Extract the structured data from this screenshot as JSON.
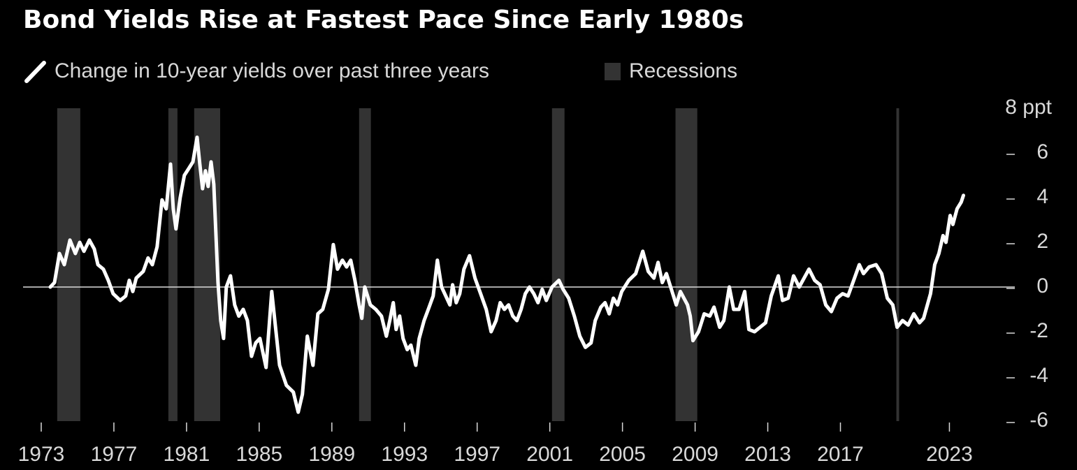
{
  "chart_data": {
    "type": "line",
    "title": "Bond Yields Rise at Fastest Pace Since Early 1980s",
    "series": [
      {
        "name": "Change in 10-year yields over past three years",
        "color": "#ffffff",
        "x": [
          1973.5,
          1973.73,
          1974.0,
          1974.27,
          1974.58,
          1974.88,
          1975.12,
          1975.35,
          1975.65,
          1975.92,
          1976.12,
          1976.42,
          1976.69,
          1976.96,
          1977.35,
          1977.65,
          1977.85,
          1978.04,
          1978.23,
          1978.62,
          1978.88,
          1979.12,
          1979.38,
          1979.65,
          1979.88,
          1980.12,
          1980.27,
          1980.42,
          1980.65,
          1980.88,
          1981.12,
          1981.35,
          1981.58,
          1981.73,
          1981.88,
          1982.04,
          1982.19,
          1982.35,
          1982.5,
          1982.73,
          1982.88,
          1983.04,
          1983.19,
          1983.42,
          1983.65,
          1983.88,
          1984.12,
          1984.35,
          1984.58,
          1984.81,
          1985.04,
          1985.38,
          1985.69,
          1986.12,
          1986.5,
          1986.88,
          1987.15,
          1987.38,
          1987.65,
          1987.96,
          1988.23,
          1988.5,
          1988.81,
          1989.08,
          1989.31,
          1989.58,
          1989.81,
          1990.04,
          1990.27,
          1990.5,
          1990.65,
          1990.81,
          1991.12,
          1991.42,
          1991.73,
          1992.0,
          1992.19,
          1992.38,
          1992.54,
          1992.73,
          1992.92,
          1993.15,
          1993.35,
          1993.62,
          1993.81,
          1994.08,
          1994.31,
          1994.58,
          1994.81,
          1995.04,
          1995.27,
          1995.5,
          1995.65,
          1995.85,
          1996.04,
          1996.27,
          1996.58,
          1996.88,
          1997.19,
          1997.5,
          1997.77,
          1998.04,
          1998.27,
          1998.5,
          1998.73,
          1998.96,
          1999.19,
          1999.42,
          1999.65,
          1999.88,
          2000.12,
          2000.35,
          2000.58,
          2000.81,
          2001.12,
          2001.5,
          2001.73,
          2002.04,
          2002.35,
          2002.65,
          2002.96,
          2003.27,
          2003.5,
          2003.81,
          2004.04,
          2004.27,
          2004.5,
          2004.73,
          2004.96,
          2005.35,
          2005.73,
          2006.12,
          2006.42,
          2006.73,
          2006.96,
          2007.19,
          2007.42,
          2007.73,
          2007.96,
          2008.19,
          2008.58,
          2008.73,
          2008.88,
          2009.19,
          2009.5,
          2009.81,
          2010.04,
          2010.35,
          2010.58,
          2010.88,
          2011.12,
          2011.42,
          2011.73,
          2011.96,
          2012.27,
          2012.58,
          2012.88,
          2013.19,
          2013.58,
          2013.81,
          2014.12,
          2014.42,
          2014.73,
          2015.27,
          2015.58,
          2015.88,
          2016.19,
          2016.5,
          2016.81,
          2017.12,
          2017.42,
          2017.73,
          2018.04,
          2018.27,
          2018.58,
          2018.96,
          2019.27,
          2019.58,
          2019.88,
          2020.12,
          2020.42,
          2020.73,
          2021.04,
          2021.35,
          2021.58,
          2021.96,
          2022.19,
          2022.42,
          2022.65,
          2022.81,
          2023.04,
          2023.19,
          2023.42,
          2023.65,
          2023.77
        ],
        "values": [
          0,
          0.2,
          1.5,
          1.0,
          2.1,
          1.5,
          2.0,
          1.6,
          2.1,
          1.7,
          1.0,
          0.8,
          0.3,
          -0.3,
          -0.6,
          -0.4,
          0.3,
          -0.2,
          0.4,
          0.7,
          1.3,
          1.0,
          1.8,
          3.9,
          3.5,
          5.5,
          3.5,
          2.6,
          4.0,
          5.0,
          5.3,
          5.6,
          6.7,
          5.5,
          4.4,
          5.2,
          4.5,
          5.6,
          4.6,
          0.2,
          -1.5,
          -2.3,
          0,
          0.5,
          -0.8,
          -1.3,
          -1.0,
          -1.5,
          -3.1,
          -2.5,
          -2.3,
          -3.6,
          -0.2,
          -3.5,
          -4.4,
          -4.7,
          -5.6,
          -4.8,
          -2.2,
          -3.5,
          -1.2,
          -1.0,
          -0.1,
          1.9,
          0.8,
          1.2,
          0.9,
          1.2,
          0.3,
          -0.8,
          -1.4,
          0,
          -0.8,
          -1.0,
          -1.3,
          -2.2,
          -1.5,
          -0.7,
          -1.9,
          -1.3,
          -2.3,
          -2.8,
          -2.6,
          -3.5,
          -2.3,
          -1.5,
          -1.0,
          -0.4,
          1.2,
          0,
          -0.4,
          -0.8,
          0.1,
          -0.7,
          -0.3,
          0.8,
          1.4,
          0.4,
          -0.3,
          -1.0,
          -2.0,
          -1.5,
          -0.7,
          -1.0,
          -0.8,
          -1.3,
          -1.5,
          -1.0,
          -0.3,
          0,
          -0.3,
          -0.7,
          -0.1,
          -0.6,
          0,
          0.3,
          -0.1,
          -0.5,
          -1.3,
          -2.2,
          -2.7,
          -2.5,
          -1.5,
          -0.9,
          -0.7,
          -1.2,
          -0.5,
          -0.8,
          -0.2,
          0.3,
          0.6,
          1.6,
          0.7,
          0.4,
          1.1,
          0.2,
          0.6,
          -0.2,
          -0.8,
          -0.2,
          -0.8,
          -1.3,
          -2.4,
          -2.0,
          -1.2,
          -1.3,
          -0.9,
          -1.8,
          -1.5,
          0,
          -1.0,
          -1.0,
          -0.2,
          -1.9,
          -2.0,
          -1.8,
          -1.6,
          -0.4,
          0.5,
          -0.6,
          -0.5,
          0.5,
          0,
          0.8,
          0.3,
          0.1,
          -0.8,
          -1.1,
          -0.5,
          -0.3,
          -0.4,
          0.3,
          1.0,
          0.6,
          0.9,
          1.0,
          0.6,
          -0.5,
          -0.8,
          -1.8,
          -1.5,
          -1.7,
          -1.2,
          -1.6,
          -1.4,
          -0.3,
          1.0,
          1.5,
          2.3,
          2.0,
          3.2,
          2.8,
          3.5,
          3.8,
          4.1
        ]
      }
    ],
    "recessions": {
      "name": "Recessions",
      "color": "#333333",
      "periods": [
        [
          1973.88,
          1975.15
        ],
        [
          1980.0,
          1980.5
        ],
        [
          1981.42,
          1982.85
        ],
        [
          1990.5,
          1991.15
        ],
        [
          2001.12,
          2001.81
        ],
        [
          2007.92,
          2009.12
        ],
        [
          2020.08,
          2020.23
        ]
      ]
    },
    "xlim": [
      1972,
      2026.6
    ],
    "xticks": [
      1973,
      1977,
      1981,
      1985,
      1989,
      1993,
      1997,
      2001,
      2005,
      2009,
      2013,
      2017,
      2023
    ],
    "ylim": [
      -6,
      8
    ],
    "yticks": [
      -6,
      -4,
      -2,
      0,
      2,
      4,
      6,
      {
        "value": 8,
        "label": "8 ppt"
      }
    ],
    "zero_line": true
  }
}
